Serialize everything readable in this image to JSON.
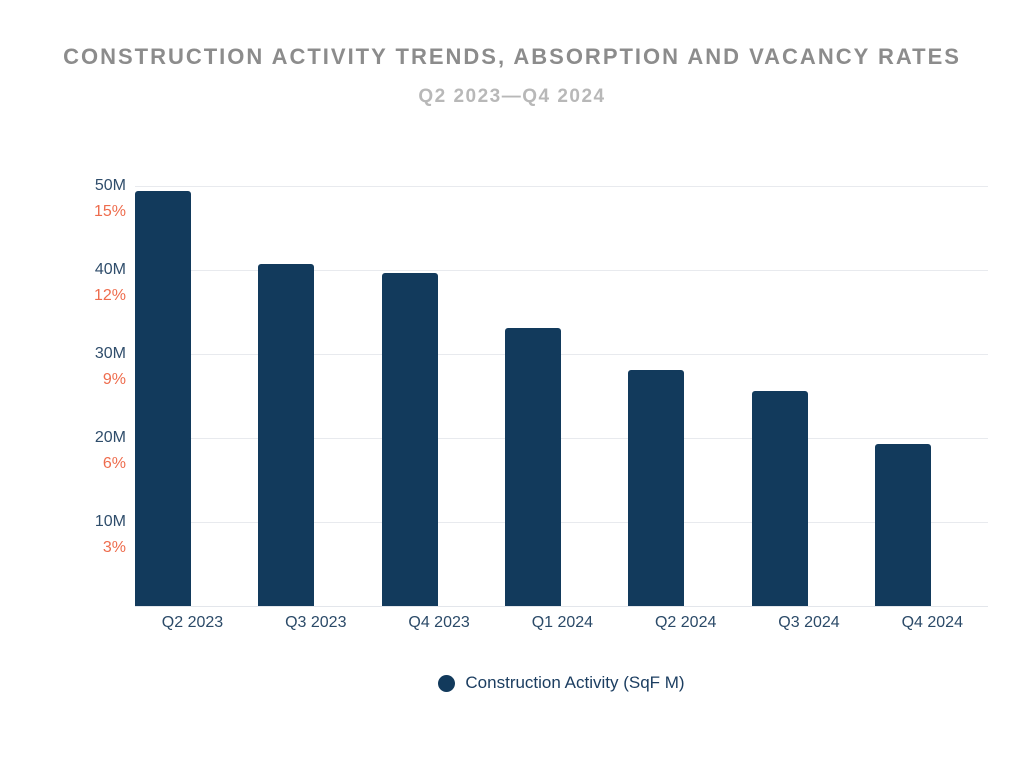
{
  "header": {
    "title": "CONSTRUCTION ACTIVITY TRENDS, ABSORPTION AND VACANCY RATES",
    "subtitle": "Q2 2023—Q4 2024"
  },
  "chart_data": {
    "type": "bar",
    "title": "CONSTRUCTION ACTIVITY TRENDS, ABSORPTION AND VACANCY RATES",
    "subtitle": "Q2 2023—Q4 2024",
    "categories": [
      "Q2 2023",
      "Q3 2023",
      "Q4 2023",
      "Q1 2024",
      "Q2 2024",
      "Q3 2024",
      "Q4 2024"
    ],
    "series": [
      {
        "name": "Construction Activity (SqF M)",
        "color": "#123A5C",
        "values": [
          49.4,
          40.7,
          39.6,
          33.1,
          28.1,
          25.6,
          19.3
        ]
      }
    ],
    "y_axis": {
      "volume_ticks": [
        "50M",
        "40M",
        "30M",
        "20M",
        "10M"
      ],
      "volume_tick_values": [
        50,
        40,
        30,
        20,
        10
      ],
      "volume_range": [
        0,
        50
      ],
      "vacancy_ticks": [
        "15%",
        "12%",
        "9%",
        "6%",
        "3%"
      ],
      "vacancy_tick_values": [
        15,
        12,
        9,
        6,
        3
      ],
      "vacancy_range": [
        0,
        15
      ]
    },
    "xlabel": "",
    "ylabel": "",
    "grid": true,
    "legend_position": "bottom"
  },
  "legend": {
    "items": [
      {
        "label": "Construction Activity (SqF M)",
        "swatch": "circle-icon",
        "color": "#123A5C"
      }
    ]
  },
  "colors": {
    "bar": "#123A5C",
    "volume_axis_label": "#2F4D6B",
    "vacancy_axis_label": "#EE6C4D",
    "x_axis_label": "#2B4A68",
    "title": "#8C8C8C",
    "subtitle": "#B8B8B8",
    "gridline": "#E8EAEE",
    "background": "#FFFFFF"
  }
}
